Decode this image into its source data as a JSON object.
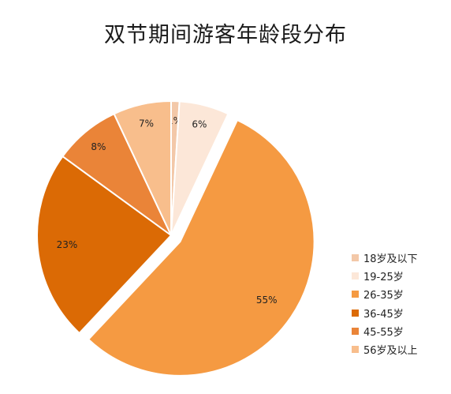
{
  "chart_data": {
    "type": "pie",
    "title": "双节期间游客年龄段分布",
    "categories": [
      "18岁及以下",
      "19-25岁",
      "26-35岁",
      "36-45岁",
      "45-55岁",
      "56岁及以上"
    ],
    "values": [
      1,
      6,
      55,
      23,
      8,
      7
    ],
    "value_labels": [
      "1%",
      "6%",
      "55%",
      "23%",
      "8%",
      "7%"
    ],
    "colors": [
      "#F3C8A8",
      "#FCE7D8",
      "#F59A42",
      "#DB6A05",
      "#EA8438",
      "#F8BE8C"
    ],
    "exploded": [
      "26-35岁"
    ],
    "legend_position": "bottom-right"
  }
}
